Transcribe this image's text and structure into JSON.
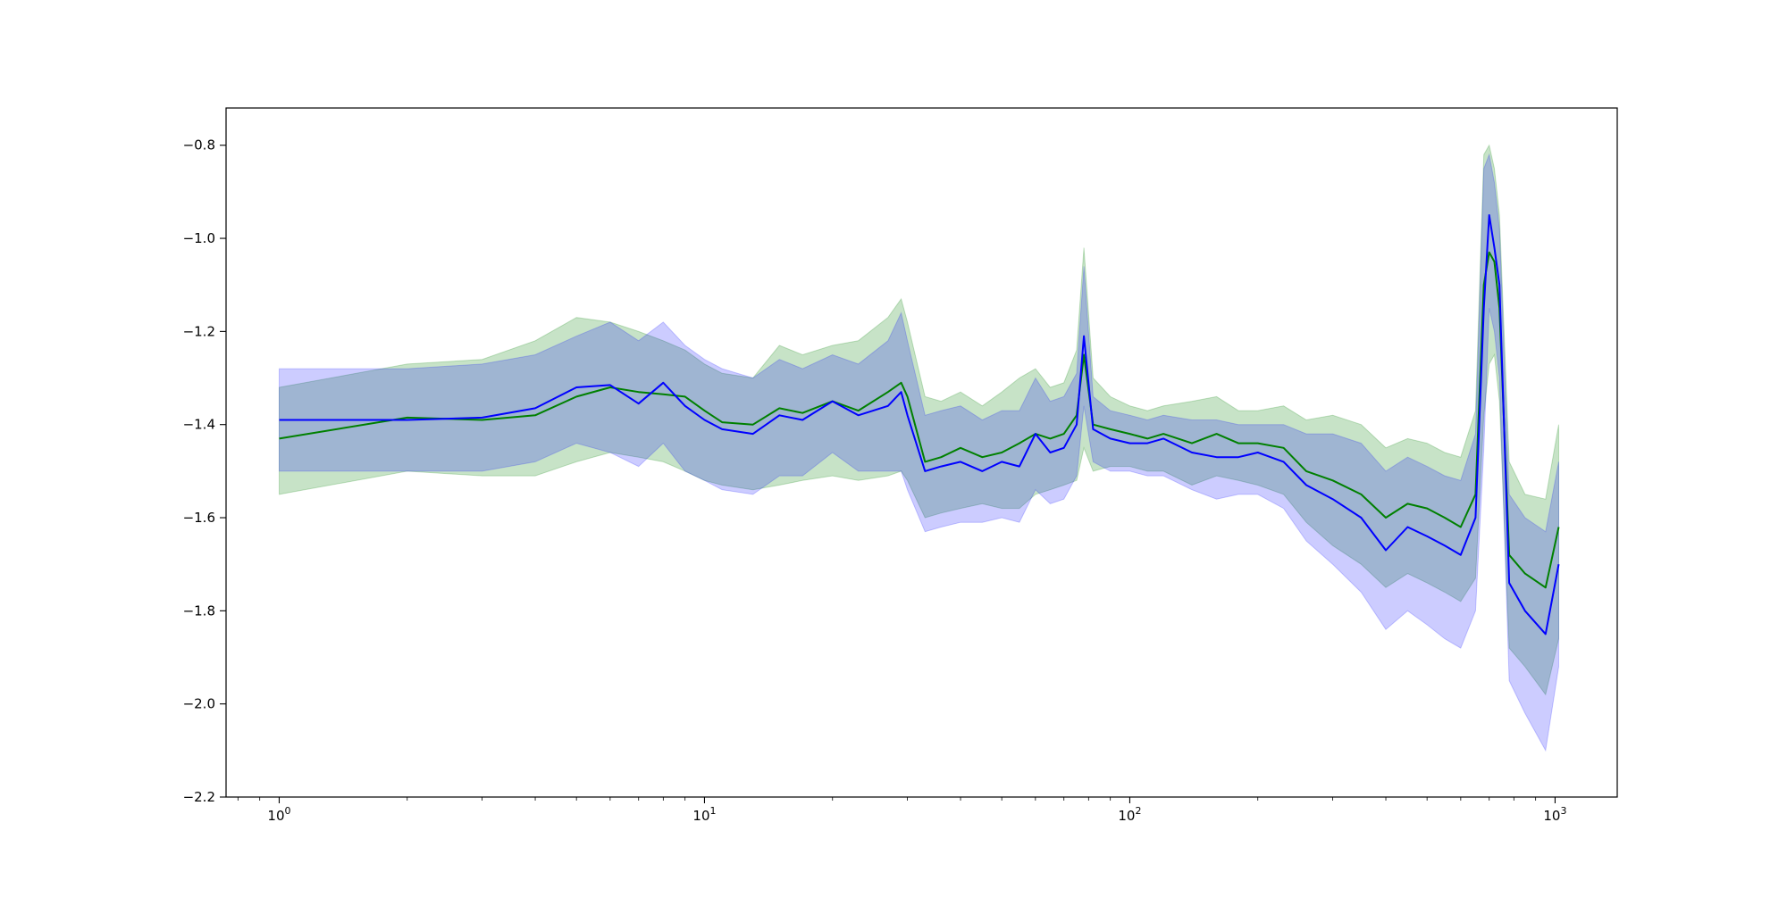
{
  "chart_data": {
    "type": "line",
    "title": "",
    "xlabel": "",
    "ylabel": "",
    "x_scale": "log",
    "xlim": [
      0.75,
      1400
    ],
    "ylim": [
      -2.2,
      -0.72
    ],
    "x_ticks": [
      {
        "value": 1,
        "base": "10",
        "exp": "0"
      },
      {
        "value": 10,
        "base": "10",
        "exp": "1"
      },
      {
        "value": 100,
        "base": "10",
        "exp": "2"
      },
      {
        "value": 1000,
        "base": "10",
        "exp": "3"
      }
    ],
    "y_ticks": [
      -0.8,
      -1.0,
      -1.2,
      -1.4,
      -1.6,
      -1.8,
      -2.0,
      -2.2
    ],
    "y_tick_labels": [
      "−0.8",
      "−1.0",
      "−1.2",
      "−1.4",
      "−1.6",
      "−1.8",
      "−2.0",
      "−2.2"
    ],
    "grid": false,
    "legend": "none",
    "series": [
      {
        "color": "#008000",
        "band_color": "#008000",
        "band_opacity": 0.22,
        "x": [
          1,
          2,
          3,
          4,
          5,
          6,
          7,
          8,
          9,
          10,
          11,
          13,
          15,
          17,
          20,
          23,
          27,
          29,
          30,
          33,
          36,
          40,
          45,
          50,
          55,
          60,
          65,
          70,
          75,
          78,
          82,
          90,
          100,
          110,
          120,
          140,
          160,
          180,
          200,
          230,
          260,
          300,
          350,
          400,
          450,
          500,
          550,
          600,
          650,
          680,
          700,
          720,
          740,
          780,
          850,
          950,
          1020
        ],
        "y": [
          -1.43,
          -1.385,
          -1.39,
          -1.38,
          -1.34,
          -1.32,
          -1.33,
          -1.335,
          -1.34,
          -1.37,
          -1.395,
          -1.4,
          -1.365,
          -1.375,
          -1.35,
          -1.37,
          -1.33,
          -1.31,
          -1.34,
          -1.48,
          -1.47,
          -1.45,
          -1.47,
          -1.46,
          -1.44,
          -1.42,
          -1.43,
          -1.42,
          -1.38,
          -1.25,
          -1.4,
          -1.41,
          -1.42,
          -1.43,
          -1.42,
          -1.44,
          -1.42,
          -1.44,
          -1.44,
          -1.45,
          -1.5,
          -1.52,
          -1.55,
          -1.6,
          -1.57,
          -1.58,
          -1.6,
          -1.62,
          -1.55,
          -1.1,
          -1.03,
          -1.05,
          -1.15,
          -1.68,
          -1.72,
          -1.75,
          -1.62
        ],
        "upper": [
          -1.32,
          -1.27,
          -1.26,
          -1.22,
          -1.17,
          -1.18,
          -1.2,
          -1.22,
          -1.24,
          -1.27,
          -1.29,
          -1.3,
          -1.23,
          -1.25,
          -1.23,
          -1.22,
          -1.17,
          -1.13,
          -1.18,
          -1.34,
          -1.35,
          -1.33,
          -1.36,
          -1.33,
          -1.3,
          -1.28,
          -1.32,
          -1.31,
          -1.24,
          -1.02,
          -1.3,
          -1.34,
          -1.36,
          -1.37,
          -1.36,
          -1.35,
          -1.34,
          -1.37,
          -1.37,
          -1.36,
          -1.39,
          -1.38,
          -1.4,
          -1.45,
          -1.43,
          -1.44,
          -1.46,
          -1.47,
          -1.37,
          -0.82,
          -0.8,
          -0.85,
          -0.95,
          -1.48,
          -1.55,
          -1.56,
          -1.4
        ],
        "lower": [
          -1.55,
          -1.5,
          -1.51,
          -1.51,
          -1.48,
          -1.46,
          -1.47,
          -1.48,
          -1.5,
          -1.52,
          -1.53,
          -1.54,
          -1.53,
          -1.52,
          -1.51,
          -1.52,
          -1.51,
          -1.5,
          -1.52,
          -1.6,
          -1.59,
          -1.58,
          -1.57,
          -1.58,
          -1.58,
          -1.55,
          -1.54,
          -1.53,
          -1.52,
          -1.45,
          -1.5,
          -1.49,
          -1.49,
          -1.5,
          -1.5,
          -1.53,
          -1.51,
          -1.52,
          -1.53,
          -1.55,
          -1.61,
          -1.66,
          -1.7,
          -1.75,
          -1.72,
          -1.74,
          -1.76,
          -1.78,
          -1.73,
          -1.38,
          -1.27,
          -1.25,
          -1.35,
          -1.88,
          -1.92,
          -1.98,
          -1.86
        ]
      },
      {
        "color": "#0000ff",
        "band_color": "#0000ff",
        "band_opacity": 0.2,
        "x": [
          1,
          2,
          3,
          4,
          5,
          6,
          7,
          8,
          9,
          10,
          11,
          13,
          15,
          17,
          20,
          23,
          27,
          29,
          30,
          33,
          36,
          40,
          45,
          50,
          55,
          60,
          65,
          70,
          75,
          78,
          82,
          90,
          100,
          110,
          120,
          140,
          160,
          180,
          200,
          230,
          260,
          300,
          350,
          400,
          450,
          500,
          550,
          600,
          650,
          680,
          700,
          720,
          740,
          780,
          850,
          950,
          1020
        ],
        "y": [
          -1.39,
          -1.39,
          -1.385,
          -1.365,
          -1.32,
          -1.315,
          -1.355,
          -1.31,
          -1.36,
          -1.39,
          -1.41,
          -1.42,
          -1.38,
          -1.39,
          -1.35,
          -1.38,
          -1.36,
          -1.33,
          -1.38,
          -1.5,
          -1.49,
          -1.48,
          -1.5,
          -1.48,
          -1.49,
          -1.42,
          -1.46,
          -1.45,
          -1.4,
          -1.21,
          -1.41,
          -1.43,
          -1.44,
          -1.44,
          -1.43,
          -1.46,
          -1.47,
          -1.47,
          -1.46,
          -1.48,
          -1.53,
          -1.56,
          -1.6,
          -1.67,
          -1.62,
          -1.64,
          -1.66,
          -1.68,
          -1.6,
          -1.15,
          -0.95,
          -1.02,
          -1.1,
          -1.74,
          -1.8,
          -1.85,
          -1.7
        ],
        "upper": [
          -1.28,
          -1.28,
          -1.27,
          -1.25,
          -1.21,
          -1.18,
          -1.22,
          -1.18,
          -1.23,
          -1.26,
          -1.28,
          -1.3,
          -1.26,
          -1.28,
          -1.25,
          -1.27,
          -1.22,
          -1.16,
          -1.22,
          -1.38,
          -1.37,
          -1.36,
          -1.39,
          -1.37,
          -1.37,
          -1.3,
          -1.35,
          -1.34,
          -1.29,
          -1.06,
          -1.34,
          -1.37,
          -1.38,
          -1.39,
          -1.38,
          -1.39,
          -1.39,
          -1.4,
          -1.4,
          -1.4,
          -1.42,
          -1.42,
          -1.44,
          -1.5,
          -1.47,
          -1.49,
          -1.51,
          -1.52,
          -1.42,
          -0.85,
          -0.82,
          -0.88,
          -0.98,
          -1.55,
          -1.6,
          -1.63,
          -1.48
        ],
        "lower": [
          -1.5,
          -1.5,
          -1.5,
          -1.48,
          -1.44,
          -1.46,
          -1.49,
          -1.44,
          -1.5,
          -1.52,
          -1.54,
          -1.55,
          -1.51,
          -1.51,
          -1.46,
          -1.5,
          -1.5,
          -1.5,
          -1.54,
          -1.63,
          -1.62,
          -1.61,
          -1.61,
          -1.6,
          -1.61,
          -1.54,
          -1.57,
          -1.56,
          -1.51,
          -1.36,
          -1.48,
          -1.5,
          -1.5,
          -1.51,
          -1.51,
          -1.54,
          -1.56,
          -1.55,
          -1.55,
          -1.58,
          -1.65,
          -1.7,
          -1.76,
          -1.84,
          -1.8,
          -1.83,
          -1.86,
          -1.88,
          -1.8,
          -1.45,
          -1.15,
          -1.2,
          -1.3,
          -1.95,
          -2.02,
          -2.1,
          -1.92
        ]
      }
    ]
  }
}
